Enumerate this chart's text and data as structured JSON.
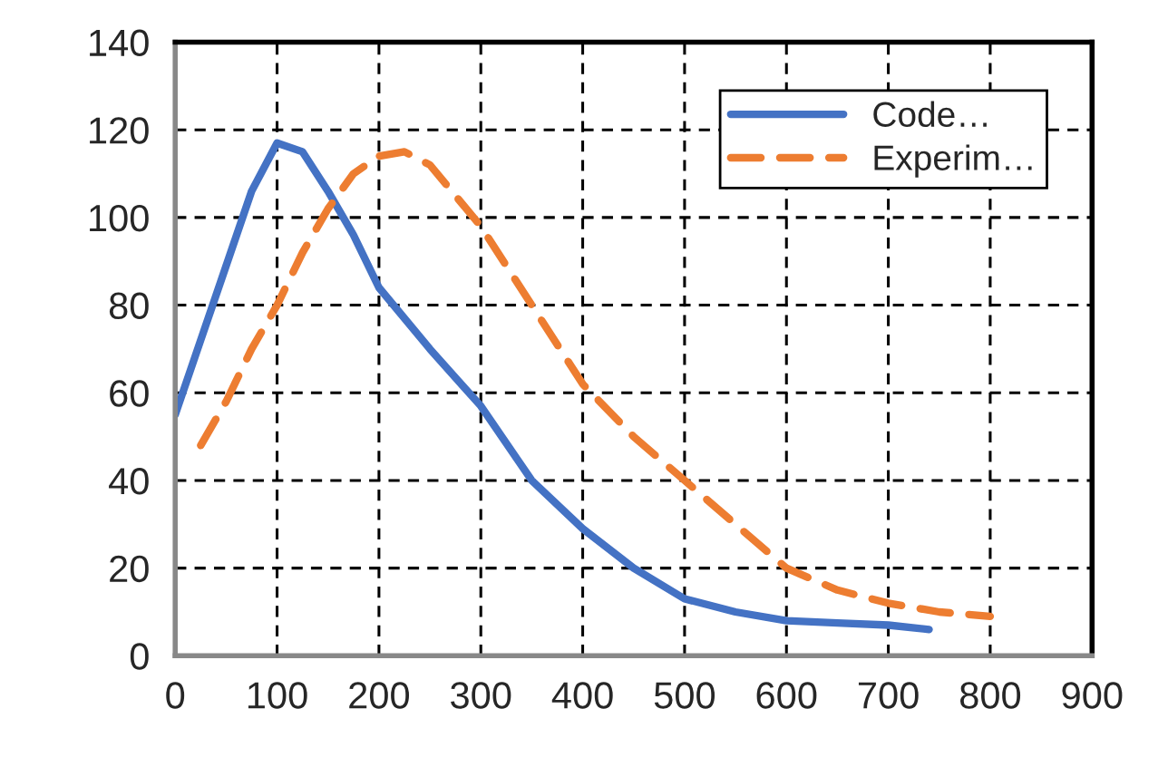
{
  "chart_data": {
    "type": "line",
    "xlim": [
      0,
      900
    ],
    "xticks": [
      0,
      100,
      200,
      300,
      400,
      500,
      600,
      700,
      800,
      900
    ],
    "ylim": [
      0,
      140
    ],
    "yticks": [
      0,
      20,
      40,
      60,
      80,
      100,
      120,
      140
    ],
    "grid": true,
    "legend": "top right",
    "series": [
      {
        "name": "Code…",
        "color": "#4472c4",
        "line_style": "solid",
        "x": [
          0,
          25,
          50,
          75,
          100,
          125,
          150,
          175,
          200,
          250,
          300,
          350,
          400,
          450,
          500,
          550,
          600,
          650,
          700,
          740
        ],
        "values": [
          55,
          72,
          89,
          106,
          117,
          115,
          106,
          96,
          84,
          70,
          57,
          40,
          29,
          20,
          13,
          10,
          8,
          7.5,
          7,
          6
        ]
      },
      {
        "name": "Experim…",
        "color": "#ed7d31",
        "line_style": "dashed",
        "x": [
          25,
          50,
          75,
          100,
          125,
          150,
          175,
          200,
          225,
          250,
          300,
          350,
          400,
          450,
          500,
          550,
          600,
          650,
          700,
          750,
          800
        ],
        "values": [
          48,
          58,
          70,
          80,
          92,
          102,
          110,
          114,
          115,
          112,
          98,
          80,
          62,
          50,
          40,
          30,
          20,
          15,
          12,
          10,
          9
        ]
      }
    ]
  }
}
